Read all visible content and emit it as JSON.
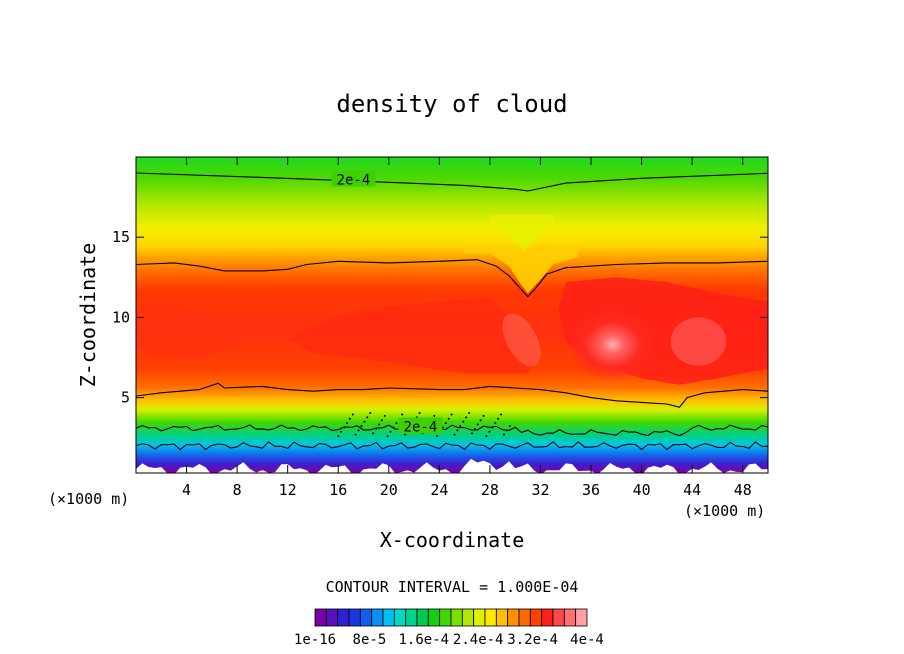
{
  "chart_data": {
    "type": "heatmap",
    "title": "density of cloud",
    "xlabel": "X-coordinate",
    "ylabel": "Z-coordinate",
    "x_unit_left": "(×1000 m)",
    "x_unit_right": "(×1000 m)",
    "xlim": [
      0,
      50
    ],
    "ylim": [
      0.3,
      20
    ],
    "x_ticks": [
      4,
      8,
      12,
      16,
      20,
      24,
      28,
      32,
      36,
      40,
      44,
      48
    ],
    "y_ticks": [
      5,
      10,
      15
    ],
    "contour_interval_text": "CONTOUR INTERVAL = 1.000E-04",
    "contour_labels": [
      {
        "text": "2e-4",
        "x": 17.2,
        "z": 18.6
      },
      {
        "text": "2e-4",
        "x": 22.5,
        "z": 3.2
      }
    ],
    "colorbar": {
      "tick_labels": [
        "1e-16",
        "8e-5",
        "1.6e-4",
        "2.4e-4",
        "3.2e-4",
        "4e-4"
      ],
      "colors": [
        "#7a00a8",
        "#5a10c0",
        "#3020d0",
        "#1a38e0",
        "#1060f0",
        "#0a90f5",
        "#00c0f0",
        "#00d8c8",
        "#00d090",
        "#00c850",
        "#10d010",
        "#40d800",
        "#7ae000",
        "#b0e800",
        "#e0f000",
        "#ffe800",
        "#ffc000",
        "#ff9000",
        "#ff6800",
        "#ff4000",
        "#ff2018",
        "#ff4848",
        "#ff7070",
        "#ffa0a0"
      ]
    },
    "grid": false
  }
}
